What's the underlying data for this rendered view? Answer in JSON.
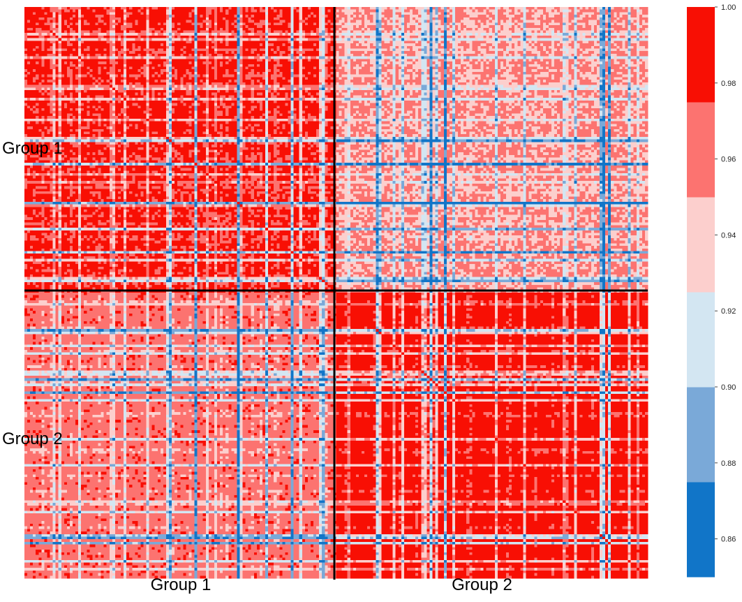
{
  "chart_data": {
    "type": "heatmap",
    "title": "",
    "xlabel": "",
    "ylabel": "",
    "row_groups": [
      "Group 1",
      "Group 2"
    ],
    "col_groups": [
      "Group 1",
      "Group 2"
    ],
    "block_summary": [
      {
        "row": "Group 1",
        "col": "Group 1",
        "typical_value": 0.985
      },
      {
        "row": "Group 1",
        "col": "Group 2",
        "typical_value": 0.955
      },
      {
        "row": "Group 2",
        "col": "Group 1",
        "typical_value": 0.965
      },
      {
        "row": "Group 2",
        "col": "Group 2",
        "typical_value": 0.99
      }
    ],
    "colorbar": {
      "range": [
        0.85,
        1.0
      ],
      "ticks": [
        "0.86",
        "0.88",
        "0.90",
        "0.92",
        "0.94",
        "0.96",
        "0.98",
        "1.00"
      ],
      "bins": [
        {
          "from": 0.85,
          "to": 0.875,
          "color": "#1175c8"
        },
        {
          "from": 0.875,
          "to": 0.9,
          "color": "#7aa9d8"
        },
        {
          "from": 0.9,
          "to": 0.925,
          "color": "#d3e6f2"
        },
        {
          "from": 0.925,
          "to": 0.95,
          "color": "#fccfcd"
        },
        {
          "from": 0.95,
          "to": 0.975,
          "color": "#fc7370"
        },
        {
          "from": 0.975,
          "to": 1.0,
          "color": "#f80f04"
        }
      ]
    },
    "grid": false,
    "legend_position": "right"
  }
}
